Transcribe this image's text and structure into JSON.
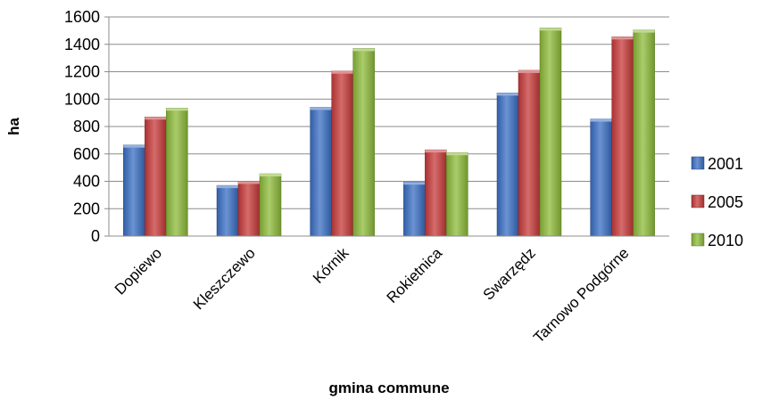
{
  "chart_data": {
    "type": "bar",
    "title": "",
    "xlabel": "gmina commune",
    "ylabel": "ha",
    "categories": [
      "Dopiewo",
      "Kleszczewo",
      "Kórnik",
      "Rokietnica",
      "Swarzędz",
      "Tarnowo Podgórne"
    ],
    "series": [
      {
        "name": "2001",
        "color": "#3A6FC4",
        "values": [
          665,
          370,
          940,
          395,
          1045,
          855
        ]
      },
      {
        "name": "2005",
        "color": "#C83A3A",
        "values": [
          870,
          400,
          1205,
          630,
          1210,
          1455
        ]
      },
      {
        "name": "2010",
        "color": "#8DBB3A",
        "values": [
          935,
          455,
          1370,
          610,
          1520,
          1505
        ]
      }
    ],
    "ylim": [
      0,
      1600
    ],
    "yticks": [
      0,
      200,
      400,
      600,
      800,
      1000,
      1200,
      1400,
      1600
    ],
    "grid": true,
    "legend_position": "right"
  }
}
